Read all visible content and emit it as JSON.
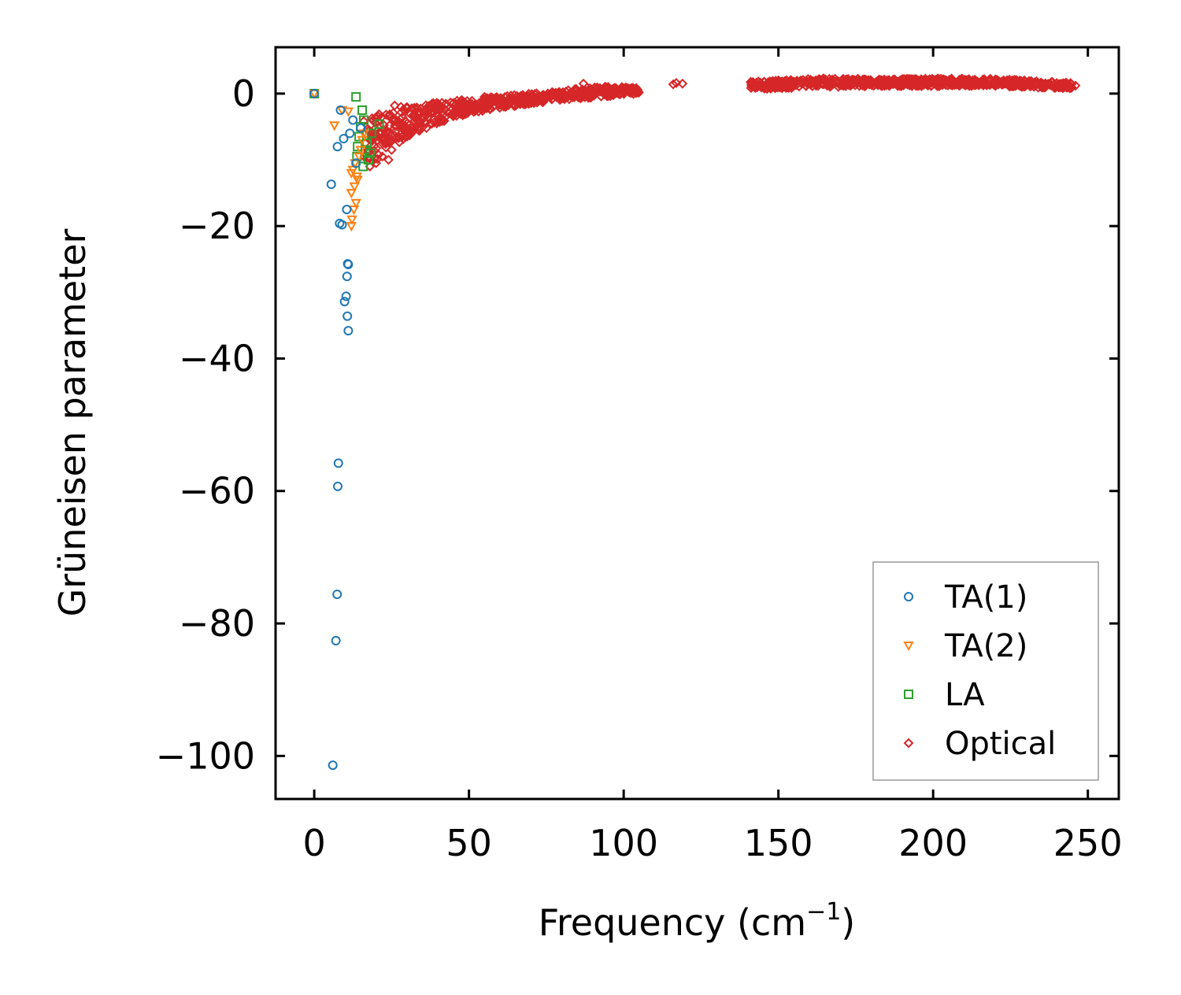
{
  "chart_data": {
    "type": "scatter",
    "xlabel": "Frequency (cm",
    "xlabel_sup": "−1",
    "xlabel_close": ")",
    "ylabel": "Grüneisen parameter",
    "xlim": [
      -12.5,
      260
    ],
    "ylim": [
      -106.5,
      7
    ],
    "xticks": [
      0,
      50,
      100,
      150,
      200,
      250
    ],
    "xtick_labels": [
      "0",
      "50",
      "100",
      "150",
      "200",
      "250"
    ],
    "yticks": [
      0,
      -20,
      -40,
      -60,
      -80,
      -100
    ],
    "ytick_labels": [
      "0",
      "−20",
      "−40",
      "−60",
      "−80",
      "−100"
    ],
    "legend_position": "lower-right",
    "series": [
      {
        "name": "TA(1)",
        "marker": "circle",
        "color": "#1f77b4",
        "x": [
          0,
          8.5,
          9.5,
          7.5,
          5.5,
          10.5,
          8.2,
          9,
          10.8,
          11,
          10.6,
          10.3,
          9.8,
          10.7,
          11,
          7.8,
          7.6,
          7.4,
          7,
          6,
          13.5,
          15,
          11.5,
          12.5
        ],
        "y": [
          0,
          -2.5,
          -6.8,
          -8,
          -13.7,
          -17.5,
          -19.6,
          -19.8,
          -25.7,
          -25.8,
          -27.6,
          -30.6,
          -31.4,
          -33.6,
          -35.8,
          -55.8,
          -59.3,
          -75.6,
          -82.6,
          -101.4,
          -10.5,
          -5.2,
          -6,
          -4
        ]
      },
      {
        "name": "TA(2)",
        "marker": "triangle-down",
        "color": "#ff7f0e",
        "x": [
          0,
          6.5,
          9,
          11,
          12,
          12.5,
          13,
          12,
          13.5,
          12.8,
          12.2,
          12,
          14,
          13.2,
          15,
          16,
          14.5,
          13.8,
          15.5
        ],
        "y": [
          0,
          -4.8,
          -2.5,
          -2.7,
          -12,
          -11.5,
          -14,
          -15,
          -16.5,
          -17.5,
          -19,
          -20,
          -13,
          -10.5,
          -8.5,
          -6,
          -9.5,
          -12.5,
          -7
        ]
      },
      {
        "name": "LA",
        "marker": "square",
        "color": "#2ca02c",
        "x": [
          0,
          13.5,
          15.5,
          16,
          15,
          14.5,
          17,
          18,
          17.5,
          16.5,
          14,
          13.8,
          15.8,
          18.5,
          21
        ],
        "y": [
          0,
          -0.5,
          -2.5,
          -4,
          -5,
          -6.5,
          -7.5,
          -9,
          -10,
          -8.5,
          -8,
          -9.5,
          -11,
          -6,
          -4.6
        ]
      },
      {
        "name": "Optical",
        "marker": "diamond",
        "color": "#d62728",
        "band": [
          {
            "x": 16,
            "lo": -12,
            "hi": -3.5
          },
          {
            "x": 20,
            "lo": -10,
            "hi": -3
          },
          {
            "x": 25,
            "lo": -8.5,
            "hi": -2.5
          },
          {
            "x": 30,
            "lo": -6.5,
            "hi": -2
          },
          {
            "x": 40,
            "lo": -4.5,
            "hi": -1.3
          },
          {
            "x": 50,
            "lo": -3,
            "hi": -0.8
          },
          {
            "x": 60,
            "lo": -2.2,
            "hi": -0.4
          },
          {
            "x": 70,
            "lo": -1.5,
            "hi": 0
          },
          {
            "x": 80,
            "lo": -1,
            "hi": 0.4
          },
          {
            "x": 90,
            "lo": -0.6,
            "hi": 1.1
          },
          {
            "x": 100,
            "lo": -0.2,
            "hi": 1
          },
          {
            "x": 105,
            "lo": 0,
            "hi": 0.8
          },
          {
            "x": 141,
            "lo": 0.6,
            "hi": 1.8
          },
          {
            "x": 150,
            "lo": 0.8,
            "hi": 2
          },
          {
            "x": 165,
            "lo": 1,
            "hi": 2.3
          },
          {
            "x": 180,
            "lo": 1.1,
            "hi": 2.2
          },
          {
            "x": 200,
            "lo": 1.1,
            "hi": 2.3
          },
          {
            "x": 220,
            "lo": 1.1,
            "hi": 2.2
          },
          {
            "x": 235,
            "lo": 0.9,
            "hi": 1.9
          },
          {
            "x": 245,
            "lo": 0.8,
            "hi": 1.6
          }
        ],
        "gaps": [
          [
            105,
            141
          ]
        ],
        "x": [
          20,
          22,
          25,
          24,
          23,
          18,
          87,
          95,
          116,
          117,
          119,
          246,
          40,
          55,
          33,
          28,
          26,
          21,
          19,
          30
        ],
        "y": [
          -10.5,
          -9.5,
          -8.5,
          -10,
          -7.5,
          -11,
          1.5,
          1,
          1.4,
          1.6,
          1.5,
          1.2,
          -1.5,
          -0.5,
          -3.5,
          -2,
          -1.8,
          -6,
          -4,
          -4.5
        ]
      }
    ]
  }
}
